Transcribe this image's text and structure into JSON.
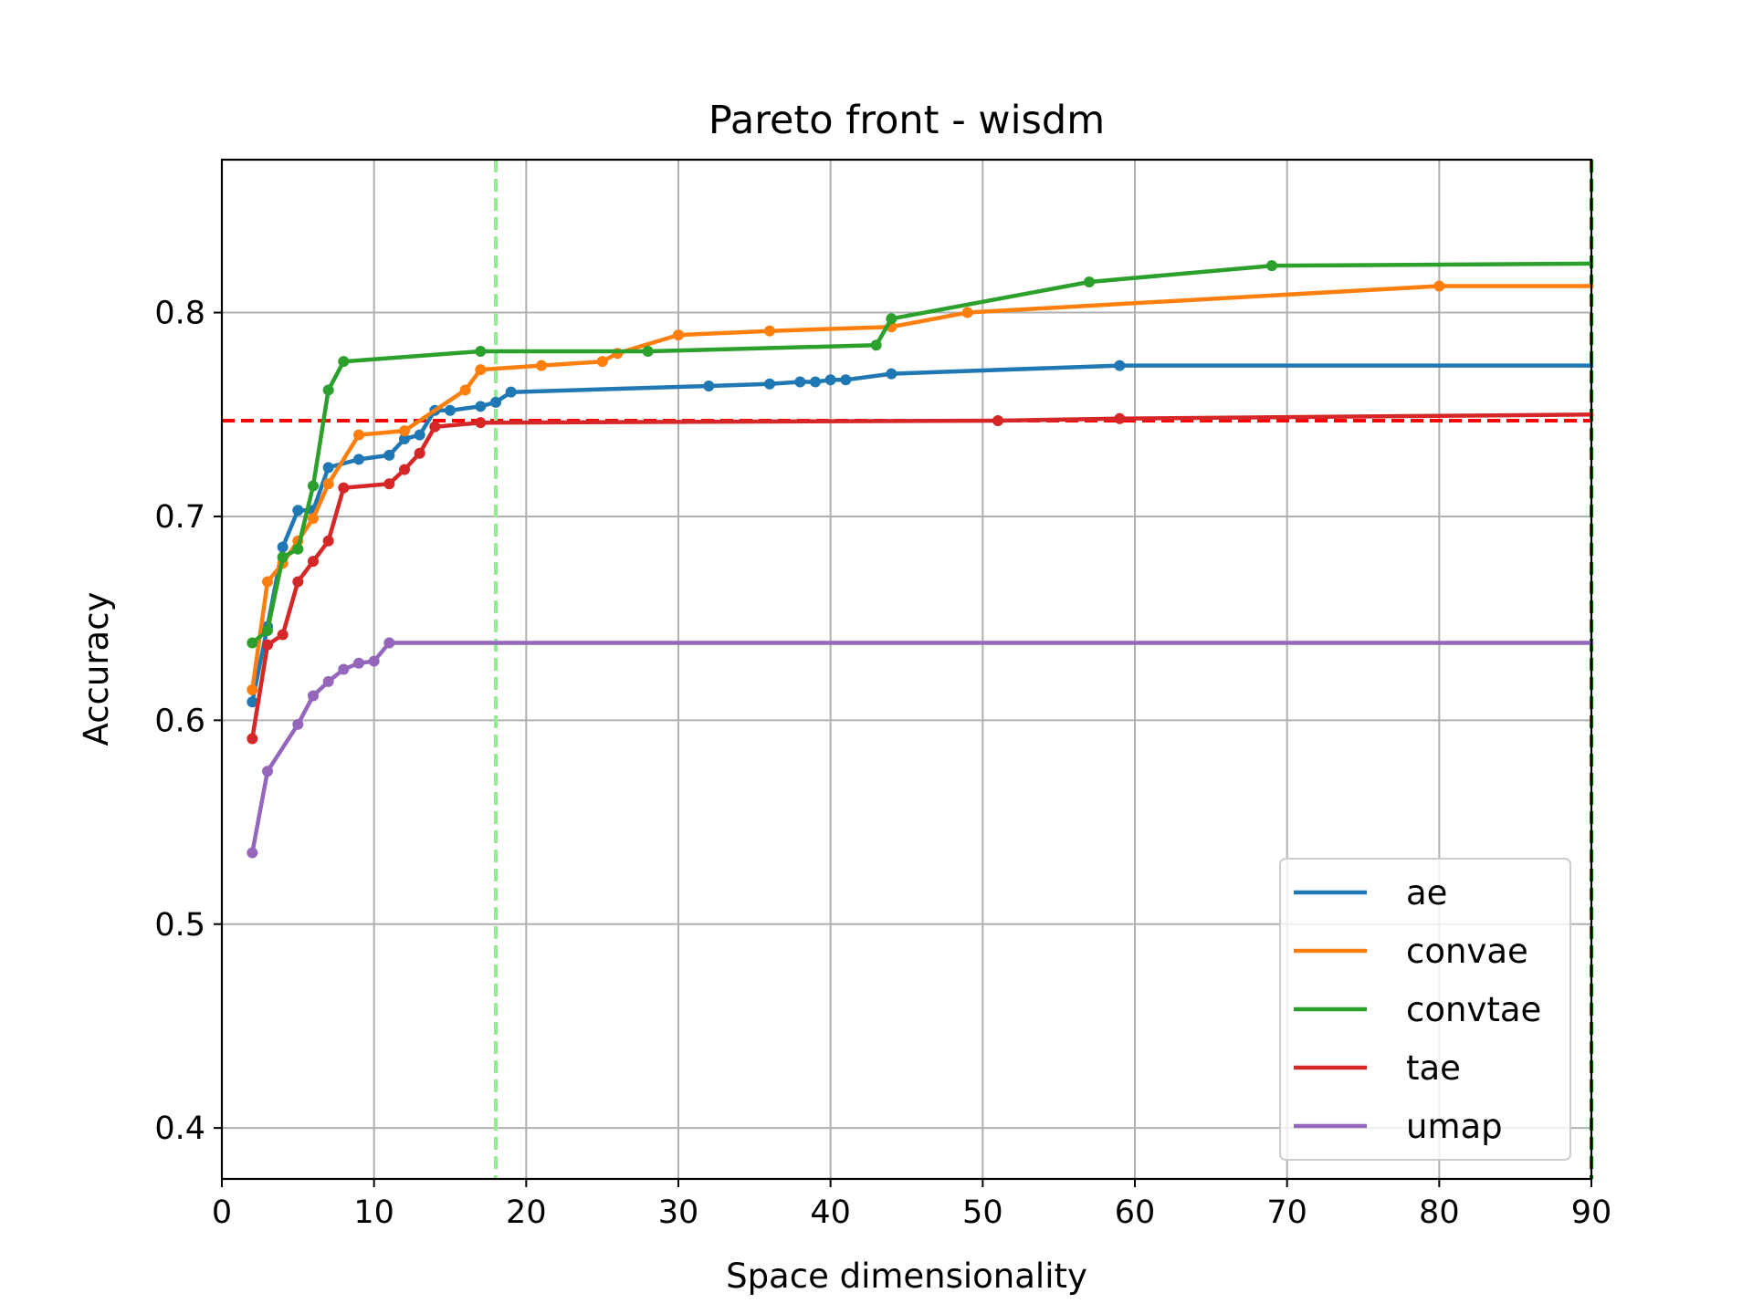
{
  "chart_data": {
    "type": "line",
    "title": "Pareto front - wisdm",
    "xlabel": "Space dimensionality",
    "ylabel": "Accuracy",
    "xlim": [
      0,
      90
    ],
    "ylim": [
      0.375,
      0.875
    ],
    "x_ticks": [
      0,
      10,
      20,
      30,
      40,
      50,
      60,
      70,
      80,
      90
    ],
    "y_ticks": [
      0.4,
      0.5,
      0.6,
      0.7,
      0.8
    ],
    "x_tick_labels": [
      "0",
      "10",
      "20",
      "30",
      "40",
      "50",
      "60",
      "70",
      "80",
      "90"
    ],
    "y_tick_labels": [
      "0.4",
      "0.5",
      "0.6",
      "0.7",
      "0.8"
    ],
    "grid": true,
    "legend_position": "lower-right",
    "reference_lines": [
      {
        "orientation": "horizontal",
        "value": 0.747,
        "style": "dashed",
        "color": "#ff0000"
      },
      {
        "orientation": "vertical",
        "value": 18,
        "style": "dashed",
        "color": "#90ee90"
      },
      {
        "orientation": "vertical",
        "value": 90,
        "style": "dashed",
        "color": "#008000"
      }
    ],
    "series": [
      {
        "name": "ae",
        "color": "#1f77b4",
        "x": [
          2,
          3,
          4,
          5,
          6,
          7,
          9,
          11,
          12,
          13,
          14,
          15,
          17,
          18,
          19,
          32,
          36,
          38,
          39,
          40,
          41,
          44,
          59,
          90
        ],
        "y": [
          0.609,
          0.646,
          0.685,
          0.703,
          0.703,
          0.724,
          0.728,
          0.73,
          0.738,
          0.74,
          0.752,
          0.752,
          0.754,
          0.756,
          0.761,
          0.764,
          0.765,
          0.766,
          0.766,
          0.767,
          0.767,
          0.77,
          0.774,
          0.774
        ]
      },
      {
        "name": "convae",
        "color": "#ff7f0e",
        "x": [
          2,
          3,
          4,
          5,
          6,
          7,
          9,
          12,
          16,
          17,
          21,
          25,
          26,
          30,
          36,
          44,
          49,
          80,
          90
        ],
        "y": [
          0.615,
          0.668,
          0.677,
          0.688,
          0.699,
          0.716,
          0.74,
          0.742,
          0.762,
          0.772,
          0.774,
          0.776,
          0.78,
          0.789,
          0.791,
          0.793,
          0.8,
          0.813,
          0.813
        ]
      },
      {
        "name": "convtae",
        "color": "#2ca02c",
        "x": [
          2,
          3,
          4,
          5,
          6,
          7,
          8,
          17,
          28,
          43,
          44,
          57,
          69,
          90
        ],
        "y": [
          0.638,
          0.644,
          0.68,
          0.684,
          0.715,
          0.762,
          0.776,
          0.781,
          0.781,
          0.784,
          0.797,
          0.815,
          0.823,
          0.824
        ]
      },
      {
        "name": "tae",
        "color": "#d62728",
        "x": [
          2,
          3,
          4,
          5,
          6,
          7,
          8,
          11,
          12,
          13,
          14,
          17,
          51,
          59,
          90
        ],
        "y": [
          0.591,
          0.637,
          0.642,
          0.668,
          0.678,
          0.688,
          0.714,
          0.716,
          0.723,
          0.731,
          0.744,
          0.746,
          0.747,
          0.748,
          0.75
        ]
      },
      {
        "name": "umap",
        "color": "#9467bd",
        "x": [
          2,
          3,
          5,
          6,
          7,
          8,
          9,
          10,
          11,
          90
        ],
        "y": [
          0.535,
          0.575,
          0.598,
          0.612,
          0.619,
          0.625,
          0.628,
          0.629,
          0.638,
          0.638
        ]
      }
    ]
  }
}
